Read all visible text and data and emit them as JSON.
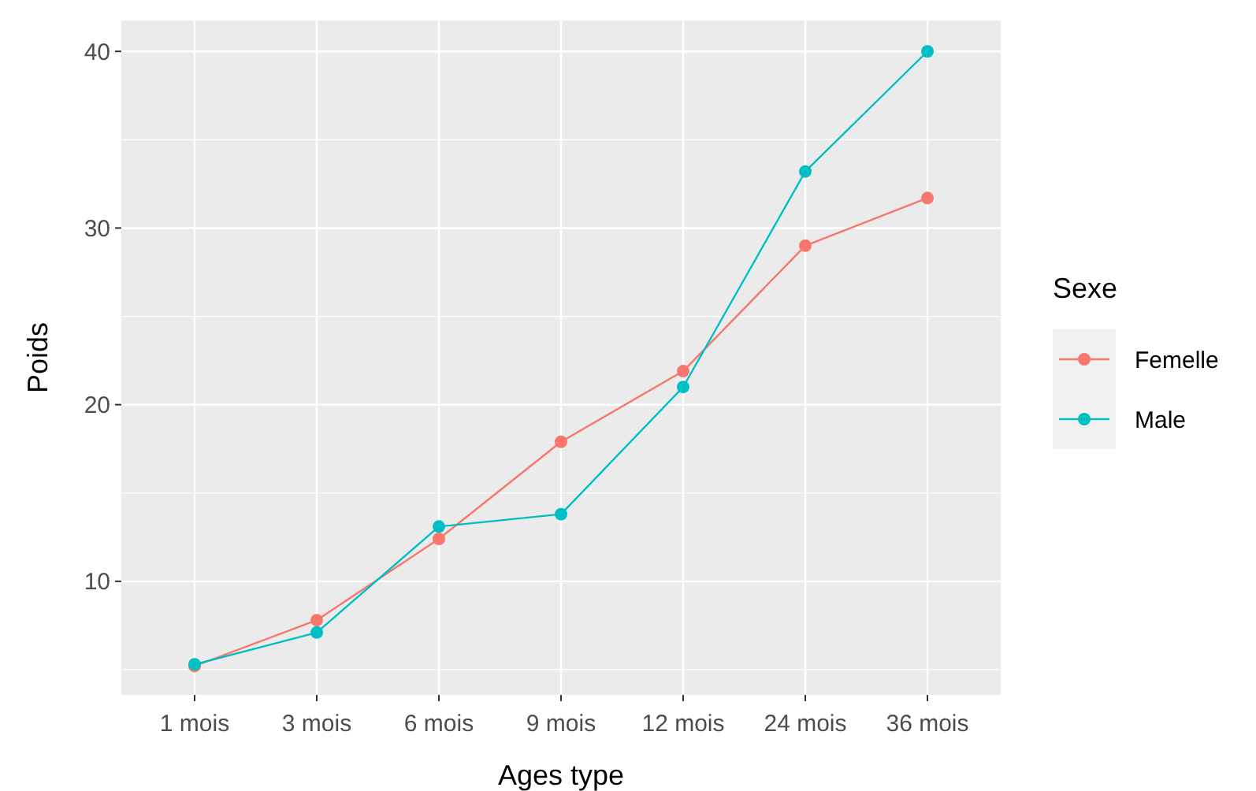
{
  "chart_data": {
    "type": "line",
    "xlabel": "Ages type",
    "ylabel": "Poids",
    "legend_title": "Sexe",
    "legend": "right",
    "grid": true,
    "marker": "circle",
    "categories": [
      "1 mois",
      "3 mois",
      "6 mois",
      "9 mois",
      "12 mois",
      "24 mois",
      "36 mois"
    ],
    "ylim": [
      3.57,
      41.75
    ],
    "yticks": [
      10,
      20,
      30,
      40
    ],
    "series": [
      {
        "name": "Femelle",
        "color": "#f8766d",
        "values": [
          5.2,
          7.8,
          12.4,
          17.9,
          21.9,
          29.0,
          31.7
        ]
      },
      {
        "name": "Male",
        "color": "#00bfc4",
        "values": [
          5.3,
          7.1,
          13.1,
          13.8,
          21.0,
          33.2,
          40.0
        ]
      }
    ]
  }
}
